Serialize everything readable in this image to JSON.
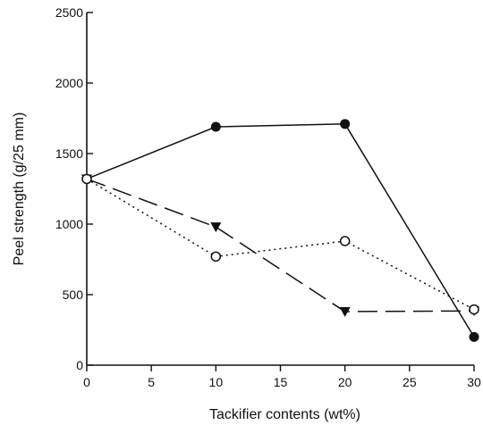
{
  "chart_data": {
    "type": "line",
    "title": "",
    "xlabel": "Tackifier contents (wt%)",
    "ylabel": "Peel strength (g/25 mm)",
    "xlim": [
      0,
      30
    ],
    "ylim": [
      0,
      2500
    ],
    "xticks": [
      0,
      5,
      10,
      15,
      20,
      25,
      30
    ],
    "yticks": [
      0,
      500,
      1000,
      1500,
      2000,
      2500
    ],
    "grid": false,
    "series": [
      {
        "x": [
          0,
          10,
          20,
          30
        ],
        "values": [
          1320,
          1690,
          1710,
          200
        ],
        "line_style": "solid",
        "marker": "filled-circle",
        "color": "#111111"
      },
      {
        "x": [
          0,
          10,
          20,
          30
        ],
        "values": [
          1320,
          980,
          380,
          385
        ],
        "line_style": "long-dash",
        "marker": "filled-triangle-down",
        "color": "#111111"
      },
      {
        "x": [
          0,
          10,
          20,
          30
        ],
        "values": [
          1320,
          770,
          880,
          395
        ],
        "line_style": "dotted",
        "marker": "open-circle",
        "color": "#111111"
      }
    ]
  }
}
